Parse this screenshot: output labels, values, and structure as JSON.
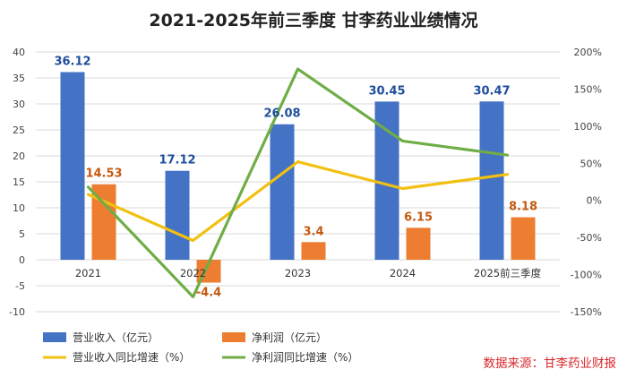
{
  "chart_data": {
    "type": "bar+line",
    "title": "2021-2025年前三季度 甘李药业业绩情况",
    "categories": [
      "2021",
      "2022",
      "2023",
      "2024",
      "2025前三季度"
    ],
    "y_left": {
      "min": -10,
      "max": 40,
      "step": 5
    },
    "y_right": {
      "min": -150,
      "max": 200,
      "step": 50,
      "unit": "%"
    },
    "series": [
      {
        "name": "营业收入（亿元）",
        "type": "bar",
        "axis": "left",
        "color": "#4472c4",
        "label_color": "#1f4e9c",
        "values": [
          36.12,
          17.12,
          26.08,
          30.45,
          30.47
        ],
        "labels": [
          "36.12",
          "17.12",
          "26.08",
          "30.45",
          "30.47"
        ]
      },
      {
        "name": "净利润（亿元）",
        "type": "bar",
        "axis": "left",
        "color": "#ed7d31",
        "label_color": "#c55a11",
        "values": [
          14.53,
          -4.4,
          3.4,
          6.15,
          8.18
        ],
        "labels": [
          "14.53",
          "-4.4",
          "3.4",
          "6.15",
          "8.18"
        ]
      },
      {
        "name": "营业收入同比增速（%）",
        "type": "line",
        "axis": "right",
        "color": "#f2c010",
        "values": [
          8,
          -54,
          52,
          16,
          35
        ]
      },
      {
        "name": "净利润同比增速（%）",
        "type": "line",
        "axis": "right",
        "color": "#70ad47",
        "values": [
          18,
          -130,
          177,
          80,
          61
        ]
      }
    ],
    "source": "数据来源：甘李药业财报"
  }
}
